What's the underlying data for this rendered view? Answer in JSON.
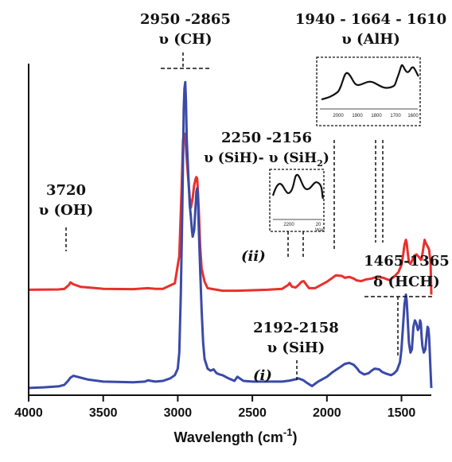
{
  "chart_data": {
    "type": "line",
    "xlabel": "Wavelength (cm",
    "xlabel_sup": "-1",
    "xlabel_close": ")",
    "xlim": [
      4000,
      1300
    ],
    "x_ticks": [
      4000,
      3500,
      3000,
      2500,
      2000,
      1500
    ],
    "series": [
      {
        "name": "(ii)",
        "color": "#e8302c",
        "x": [
          4000,
          3800,
          3760,
          3730,
          3720,
          3700,
          3650,
          3500,
          3300,
          3200,
          3150,
          3100,
          3020,
          2990,
          2975,
          2965,
          2955,
          2950,
          2940,
          2930,
          2920,
          2912,
          2900,
          2890,
          2880,
          2875,
          2870,
          2865,
          2858,
          2850,
          2840,
          2820,
          2800,
          2700,
          2600,
          2400,
          2300,
          2260,
          2250,
          2235,
          2210,
          2190,
          2170,
          2156,
          2140,
          2120,
          2080,
          2000,
          1960,
          1940,
          1900,
          1880,
          1850,
          1820,
          1800,
          1770,
          1740,
          1700,
          1680,
          1664,
          1640,
          1620,
          1610,
          1580,
          1550,
          1520,
          1500,
          1490,
          1480,
          1470,
          1465,
          1458,
          1450,
          1440,
          1425,
          1415,
          1400,
          1390,
          1380,
          1370,
          1365,
          1355,
          1345,
          1335,
          1325,
          1315,
          1310,
          1305,
          1300
        ],
        "y": [
          0.315,
          0.316,
          0.318,
          0.33,
          0.338,
          0.332,
          0.324,
          0.318,
          0.317,
          0.32,
          0.318,
          0.318,
          0.335,
          0.42,
          0.62,
          0.78,
          0.8,
          0.79,
          0.72,
          0.66,
          0.6,
          0.57,
          0.6,
          0.64,
          0.66,
          0.665,
          0.66,
          0.62,
          0.55,
          0.45,
          0.38,
          0.34,
          0.32,
          0.312,
          0.312,
          0.315,
          0.318,
          0.33,
          0.336,
          0.325,
          0.322,
          0.33,
          0.34,
          0.342,
          0.332,
          0.32,
          0.32,
          0.34,
          0.353,
          0.36,
          0.358,
          0.352,
          0.355,
          0.35,
          0.344,
          0.342,
          0.347,
          0.35,
          0.353,
          0.355,
          0.353,
          0.352,
          0.35,
          0.345,
          0.355,
          0.37,
          0.392,
          0.42,
          0.455,
          0.47,
          0.46,
          0.43,
          0.4,
          0.395,
          0.41,
          0.42,
          0.425,
          0.42,
          0.415,
          0.408,
          0.41,
          0.44,
          0.47,
          0.458,
          0.45,
          0.44,
          0.42,
          0.4,
          0.3
        ]
      },
      {
        "name": "(i)",
        "color": "#3a4aa8",
        "x": [
          4000,
          3900,
          3800,
          3760,
          3740,
          3720,
          3700,
          3650,
          3600,
          3500,
          3300,
          3220,
          3200,
          3180,
          3150,
          3100,
          3050,
          3020,
          3000,
          2990,
          2980,
          2970,
          2960,
          2955,
          2950,
          2945,
          2940,
          2930,
          2920,
          2912,
          2905,
          2900,
          2890,
          2880,
          2875,
          2870,
          2865,
          2860,
          2850,
          2840,
          2830,
          2820,
          2800,
          2780,
          2760,
          2740,
          2720,
          2700,
          2660,
          2620,
          2600,
          2560,
          2500,
          2400,
          2300,
          2250,
          2220,
          2200,
          2192,
          2180,
          2158,
          2140,
          2120,
          2100,
          2060,
          2000,
          1960,
          1920,
          1880,
          1850,
          1820,
          1800,
          1780,
          1750,
          1720,
          1700,
          1680,
          1650,
          1630,
          1600,
          1570,
          1550,
          1530,
          1510,
          1500,
          1490,
          1480,
          1470,
          1465,
          1460,
          1455,
          1450,
          1440,
          1430,
          1420,
          1410,
          1400,
          1390,
          1380,
          1375,
          1370,
          1365,
          1360,
          1350,
          1340,
          1330,
          1325,
          1320,
          1315,
          1310,
          1305,
          1300
        ],
        "y": [
          0.01,
          0.012,
          0.015,
          0.02,
          0.03,
          0.042,
          0.048,
          0.042,
          0.036,
          0.03,
          0.028,
          0.03,
          0.034,
          0.032,
          0.03,
          0.032,
          0.04,
          0.05,
          0.07,
          0.12,
          0.3,
          0.55,
          0.88,
          0.94,
          0.96,
          0.9,
          0.78,
          0.68,
          0.58,
          0.54,
          0.5,
          0.48,
          0.5,
          0.58,
          0.62,
          0.63,
          0.61,
          0.52,
          0.38,
          0.25,
          0.15,
          0.1,
          0.07,
          0.064,
          0.068,
          0.056,
          0.052,
          0.05,
          0.04,
          0.032,
          0.045,
          0.032,
          0.03,
          0.03,
          0.03,
          0.033,
          0.036,
          0.038,
          0.04,
          0.038,
          0.034,
          0.028,
          0.022,
          0.016,
          0.03,
          0.045,
          0.06,
          0.072,
          0.085,
          0.088,
          0.082,
          0.072,
          0.06,
          0.052,
          0.056,
          0.064,
          0.07,
          0.068,
          0.06,
          0.054,
          0.05,
          0.055,
          0.065,
          0.09,
          0.13,
          0.2,
          0.27,
          0.3,
          0.28,
          0.24,
          0.19,
          0.15,
          0.12,
          0.13,
          0.2,
          0.22,
          0.21,
          0.19,
          0.2,
          0.22,
          0.21,
          0.17,
          0.14,
          0.12,
          0.13,
          0.18,
          0.2,
          0.195,
          0.17,
          0.12,
          0.06,
          0.01
        ]
      }
    ],
    "annotations": [
      {
        "id": "oh",
        "lines": [
          "3720",
          "υ (OH)"
        ]
      },
      {
        "id": "ch",
        "lines": [
          "2950 -2865",
          "υ (CH)"
        ]
      },
      {
        "id": "sih_sih2",
        "lines": [
          "2250 -2156",
          "υ (SiH)- υ (SiH",
          "2",
          ")"
        ]
      },
      {
        "id": "alh",
        "lines": [
          "1940 - 1664 - 1610",
          "υ (AlH)"
        ]
      },
      {
        "id": "hch",
        "lines": [
          "1465-1365",
          "δ (HCH)"
        ]
      },
      {
        "id": "sih",
        "lines": [
          "2192-2158",
          "υ (SiH)"
        ]
      }
    ],
    "inset_sih": {
      "tick_labels": [
        "2200",
        "20"
      ],
      "axis_label": "Wav"
    },
    "inset_alh": {
      "tick_labels": [
        "2000",
        "1900",
        "1800",
        "1700",
        "1600"
      ]
    }
  }
}
